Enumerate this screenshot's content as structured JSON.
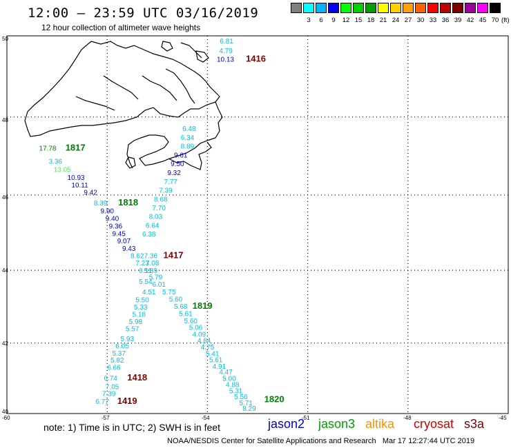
{
  "header": {
    "title": "12:00 – 23:59 UTC 03/16/2019",
    "subtitle": "12 hour collection of altimeter wave heights"
  },
  "legend": {
    "unit": "(ft)",
    "swatches": [
      {
        "label": "",
        "color": "#808080"
      },
      {
        "label": "3",
        "color": "#00ffff"
      },
      {
        "label": "6",
        "color": "#00b4ff"
      },
      {
        "label": "9",
        "color": "#0000ff"
      },
      {
        "label": "12",
        "color": "#00ff00"
      },
      {
        "label": "15",
        "color": "#00d000"
      },
      {
        "label": "18",
        "color": "#00a000"
      },
      {
        "label": "21",
        "color": "#ffff00"
      },
      {
        "label": "24",
        "color": "#ffd000"
      },
      {
        "label": "27",
        "color": "#ffa000"
      },
      {
        "label": "30",
        "color": "#ff6000"
      },
      {
        "label": "33",
        "color": "#ff0000"
      },
      {
        "label": "36",
        "color": "#c00000"
      },
      {
        "label": "39",
        "color": "#800000"
      },
      {
        "label": "42",
        "color": "#a000a0"
      },
      {
        "label": "45",
        "color": "#ff00ff"
      },
      {
        "label": "70",
        "color": "#000000"
      }
    ]
  },
  "axes": {
    "lat_labels": [
      "50",
      "48",
      "46",
      "44",
      "42",
      "40"
    ],
    "lon_labels": [
      "-60",
      "-57",
      "-54",
      "-51",
      "-48",
      "-45"
    ]
  },
  "colors": {
    "cyan": "#00c0e0",
    "lightblue": "#00c8f0",
    "blue": "#0000c8",
    "green": "#008000",
    "lightgreen": "#60e060",
    "time": "#800000"
  },
  "labels": [
    {
      "text": "6.81",
      "lon": -53.63,
      "lat": 49.82,
      "c": "cyan"
    },
    {
      "text": "4.79",
      "lon": -53.65,
      "lat": 49.58,
      "c": "cyan"
    },
    {
      "text": "10.13",
      "lon": -53.72,
      "lat": 49.37,
      "c": "blue"
    },
    {
      "text": "1416",
      "lon": -52.85,
      "lat": 49.37,
      "c": "time",
      "time": true
    },
    {
      "text": "17.78",
      "lon": -59.04,
      "lat": 47.15,
      "c": "green"
    },
    {
      "text": "1817",
      "lon": -58.25,
      "lat": 47.15,
      "c": "green",
      "time": true
    },
    {
      "text": "3.36",
      "lon": -58.75,
      "lat": 46.81,
      "c": "cyan"
    },
    {
      "text": "13.05",
      "lon": -58.6,
      "lat": 46.6,
      "c": "lightgreen"
    },
    {
      "text": "10.93",
      "lon": -58.19,
      "lat": 46.39,
      "c": "blue"
    },
    {
      "text": "10.11",
      "lon": -58.07,
      "lat": 46.2,
      "c": "blue"
    },
    {
      "text": "9.42",
      "lon": -57.7,
      "lat": 46.01,
      "c": "blue"
    },
    {
      "text": "8.39",
      "lon": -57.4,
      "lat": 45.73,
      "c": "cyan"
    },
    {
      "text": "1818",
      "lon": -56.67,
      "lat": 45.73,
      "c": "green",
      "time": true
    },
    {
      "text": "9.90",
      "lon": -57.2,
      "lat": 45.52,
      "c": "blue"
    },
    {
      "text": "9.40",
      "lon": -57.05,
      "lat": 45.32,
      "c": "blue"
    },
    {
      "text": "9.36",
      "lon": -56.95,
      "lat": 45.12,
      "c": "blue"
    },
    {
      "text": "9.45",
      "lon": -56.85,
      "lat": 44.92,
      "c": "blue"
    },
    {
      "text": "9.07",
      "lon": -56.7,
      "lat": 44.72,
      "c": "blue"
    },
    {
      "text": "9.43",
      "lon": -56.55,
      "lat": 44.52,
      "c": "blue"
    },
    {
      "text": "8.62",
      "lon": -56.3,
      "lat": 44.33,
      "c": "cyan"
    },
    {
      "text": "7.36",
      "lon": -55.9,
      "lat": 44.33,
      "c": "cyan"
    },
    {
      "text": "1417",
      "lon": -55.32,
      "lat": 44.33,
      "c": "time",
      "time": true
    },
    {
      "text": "7.23",
      "lon": -56.15,
      "lat": 44.13,
      "c": "cyan"
    },
    {
      "text": "7.08",
      "lon": -55.85,
      "lat": 44.13,
      "c": "cyan"
    },
    {
      "text": "6.11",
      "lon": -56.05,
      "lat": 43.93,
      "c": "cyan"
    },
    {
      "text": "5.89",
      "lon": -55.9,
      "lat": 43.93,
      "c": "cyan"
    },
    {
      "text": "5.79",
      "lon": -55.75,
      "lat": 43.75,
      "c": "cyan"
    },
    {
      "text": "5.54",
      "lon": -56.05,
      "lat": 43.63,
      "c": "cyan"
    },
    {
      "text": "6.01",
      "lon": -55.65,
      "lat": 43.55,
      "c": "cyan"
    },
    {
      "text": "4.51",
      "lon": -55.95,
      "lat": 43.35,
      "c": "cyan"
    },
    {
      "text": "5.75",
      "lon": -55.35,
      "lat": 43.35,
      "c": "cyan"
    },
    {
      "text": "5.50",
      "lon": -56.15,
      "lat": 43.13,
      "c": "cyan"
    },
    {
      "text": "5.60",
      "lon": -55.15,
      "lat": 43.15,
      "c": "cyan"
    },
    {
      "text": "5.33",
      "lon": -56.2,
      "lat": 42.93,
      "c": "cyan"
    },
    {
      "text": "5.68",
      "lon": -55.0,
      "lat": 42.95,
      "c": "cyan"
    },
    {
      "text": "1819",
      "lon": -54.45,
      "lat": 42.95,
      "c": "green",
      "time": true
    },
    {
      "text": "5.18",
      "lon": -56.25,
      "lat": 42.73,
      "c": "cyan"
    },
    {
      "text": "5.61",
      "lon": -54.85,
      "lat": 42.75,
      "c": "cyan"
    },
    {
      "text": "5.98",
      "lon": -56.35,
      "lat": 42.53,
      "c": "cyan"
    },
    {
      "text": "5.60",
      "lon": -54.7,
      "lat": 42.55,
      "c": "cyan"
    },
    {
      "text": "5.06",
      "lon": -54.55,
      "lat": 42.37,
      "c": "cyan"
    },
    {
      "text": "5.57",
      "lon": -56.45,
      "lat": 42.33,
      "c": "cyan"
    },
    {
      "text": "4.09",
      "lon": -54.45,
      "lat": 42.18,
      "c": "cyan"
    },
    {
      "text": "4.64",
      "lon": -54.3,
      "lat": 42.0,
      "c": "cyan"
    },
    {
      "text": "5.93",
      "lon": -56.6,
      "lat": 42.05,
      "c": "cyan"
    },
    {
      "text": "4.75",
      "lon": -54.2,
      "lat": 41.82,
      "c": "cyan"
    },
    {
      "text": "6.05",
      "lon": -56.75,
      "lat": 41.85,
      "c": "cyan"
    },
    {
      "text": "5.41",
      "lon": -54.05,
      "lat": 41.64,
      "c": "cyan"
    },
    {
      "text": "5.37",
      "lon": -56.85,
      "lat": 41.65,
      "c": "cyan"
    },
    {
      "text": "5.61",
      "lon": -53.95,
      "lat": 41.46,
      "c": "cyan"
    },
    {
      "text": "5.82",
      "lon": -56.9,
      "lat": 41.45,
      "c": "cyan"
    },
    {
      "text": "4.91",
      "lon": -53.85,
      "lat": 41.28,
      "c": "cyan"
    },
    {
      "text": "6.66",
      "lon": -57.0,
      "lat": 41.25,
      "c": "cyan"
    },
    {
      "text": "4.47",
      "lon": -53.65,
      "lat": 41.12,
      "c": "cyan"
    },
    {
      "text": "5.00",
      "lon": -53.55,
      "lat": 40.94,
      "c": "cyan"
    },
    {
      "text": "6.74",
      "lon": -57.1,
      "lat": 40.95,
      "c": "cyan"
    },
    {
      "text": "1418",
      "lon": -56.4,
      "lat": 40.95,
      "c": "time",
      "time": true
    },
    {
      "text": "4.88",
      "lon": -53.45,
      "lat": 40.76,
      "c": "cyan"
    },
    {
      "text": "7.05",
      "lon": -57.05,
      "lat": 40.7,
      "c": "cyan"
    },
    {
      "text": "5.31",
      "lon": -53.35,
      "lat": 40.58,
      "c": "cyan"
    },
    {
      "text": "7.39",
      "lon": -57.15,
      "lat": 40.5,
      "c": "cyan"
    },
    {
      "text": "5.56",
      "lon": -53.2,
      "lat": 40.42,
      "c": "cyan"
    },
    {
      "text": "1820",
      "lon": -52.3,
      "lat": 40.33,
      "c": "green",
      "time": true
    },
    {
      "text": "6.77",
      "lon": -57.35,
      "lat": 40.28,
      "c": "cyan"
    },
    {
      "text": "1419",
      "lon": -56.7,
      "lat": 40.28,
      "c": "time",
      "time": true
    },
    {
      "text": "5.71",
      "lon": -53.05,
      "lat": 40.24,
      "c": "cyan"
    },
    {
      "text": "8.29",
      "lon": -52.95,
      "lat": 40.08,
      "c": "cyan"
    },
    {
      "text": "6.48",
      "lon": -54.75,
      "lat": 47.65,
      "c": "cyan"
    },
    {
      "text": "6.34",
      "lon": -54.8,
      "lat": 47.42,
      "c": "cyan"
    },
    {
      "text": "8.89",
      "lon": -54.8,
      "lat": 47.2,
      "c": "cyan"
    },
    {
      "text": "9.61",
      "lon": -55.0,
      "lat": 46.97,
      "c": "blue"
    },
    {
      "text": "9.50",
      "lon": -55.1,
      "lat": 46.75,
      "c": "blue"
    },
    {
      "text": "9.32",
      "lon": -55.2,
      "lat": 46.52,
      "c": "blue"
    },
    {
      "text": "7.77",
      "lon": -55.3,
      "lat": 46.29,
      "c": "cyan"
    },
    {
      "text": "7.39",
      "lon": -55.45,
      "lat": 46.06,
      "c": "cyan"
    },
    {
      "text": "8.68",
      "lon": -55.6,
      "lat": 45.83,
      "c": "cyan"
    },
    {
      "text": "7.70",
      "lon": -55.65,
      "lat": 45.6,
      "c": "cyan"
    },
    {
      "text": "8.03",
      "lon": -55.75,
      "lat": 45.37,
      "c": "cyan"
    },
    {
      "text": "6.64",
      "lon": -55.85,
      "lat": 45.14,
      "c": "cyan"
    },
    {
      "text": "6.38",
      "lon": -55.95,
      "lat": 44.91,
      "c": "cyan"
    }
  ],
  "footer": {
    "note": "note: 1) Time is in UTC; 2) SWH is in feet",
    "satellites": [
      {
        "name": "jason2",
        "color": "#0000d0"
      },
      {
        "name": "jason3",
        "color": "#00a000"
      },
      {
        "name": "altika",
        "color": "#ff9000"
      },
      {
        "name": "cryosat",
        "color": "#d00000"
      },
      {
        "name": "s3a",
        "color": "#800000"
      }
    ],
    "credit": "NOAA/NESDIS Center for Satellite Applications and Research   Mar 17 12:27:44 UTC 2019"
  }
}
